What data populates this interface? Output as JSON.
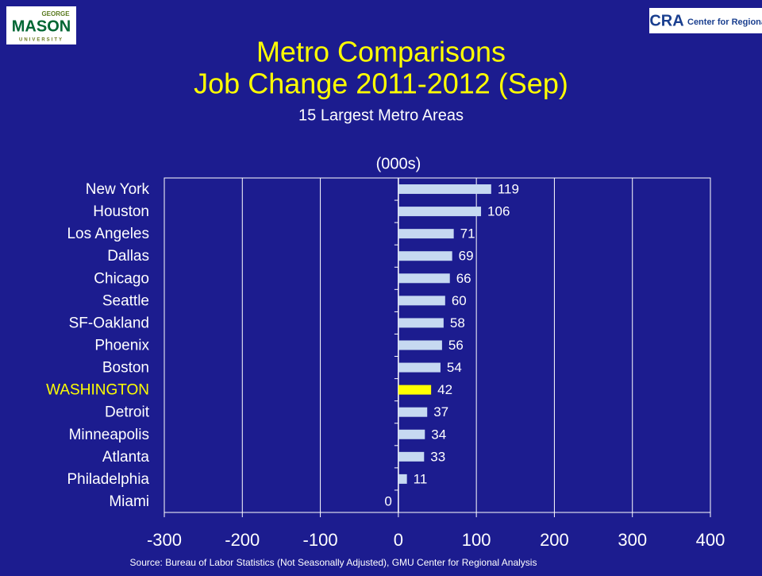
{
  "logos": {
    "left": [
      "GEORGE",
      "MASON",
      "UNIVERSITY"
    ],
    "right": {
      "mark": "CRA",
      "text": "Center for Regional Analysis"
    }
  },
  "chart_data": {
    "type": "barh",
    "title": [
      "Metro Comparisons",
      "Job Change 2011-2012 (Sep)"
    ],
    "subtitle": "15 Largest Metro Areas",
    "unit_label": "(000s)",
    "source": "Source: Bureau of Labor Statistics (Not Seasonally Adjusted), GMU Center for Regional Analysis",
    "categories": [
      "New York",
      "Houston",
      "Los Angeles",
      "Dallas",
      "Chicago",
      "Seattle",
      "SF-Oakland",
      "Phoenix",
      "Boston",
      "WASHINGTON",
      "Detroit",
      "Minneapolis",
      "Atlanta",
      "Philadelphia",
      "Miami"
    ],
    "values": [
      119,
      106,
      71,
      69,
      66,
      60,
      58,
      56,
      54,
      42,
      37,
      34,
      33,
      11,
      0
    ],
    "color": "#c6d9f1",
    "colors": [
      "#c6d9f1",
      "#c6d9f1",
      "#c6d9f1",
      "#c6d9f1",
      "#c6d9f1",
      "#c6d9f1",
      "#c6d9f1",
      "#c6d9f1",
      "#c6d9f1",
      "#ffff00",
      "#c6d9f1",
      "#c6d9f1",
      "#c6d9f1",
      "#c6d9f1",
      "#c6d9f1"
    ],
    "xlim": [
      -300,
      400
    ],
    "xticks": [
      -300,
      -200,
      -100,
      0,
      100,
      200,
      300,
      400
    ],
    "grid": true
  }
}
